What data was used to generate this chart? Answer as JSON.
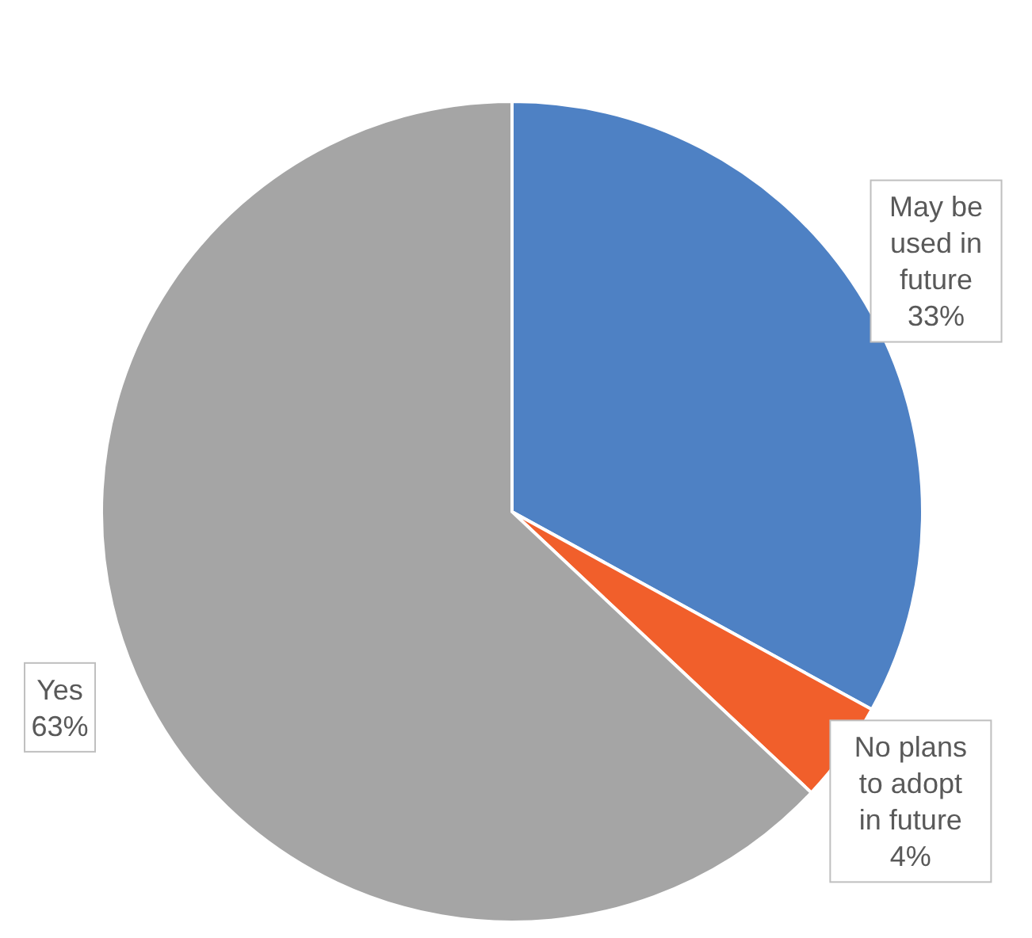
{
  "chart_data": {
    "type": "pie",
    "categories": [
      "May be used in future",
      "No plans to adopt in future",
      "Yes"
    ],
    "values": [
      33,
      4,
      63
    ],
    "colors": [
      "#4e81c4",
      "#f15f2b",
      "#a5a5a5"
    ],
    "value_labels": [
      "33%",
      "4%",
      "63%"
    ]
  }
}
